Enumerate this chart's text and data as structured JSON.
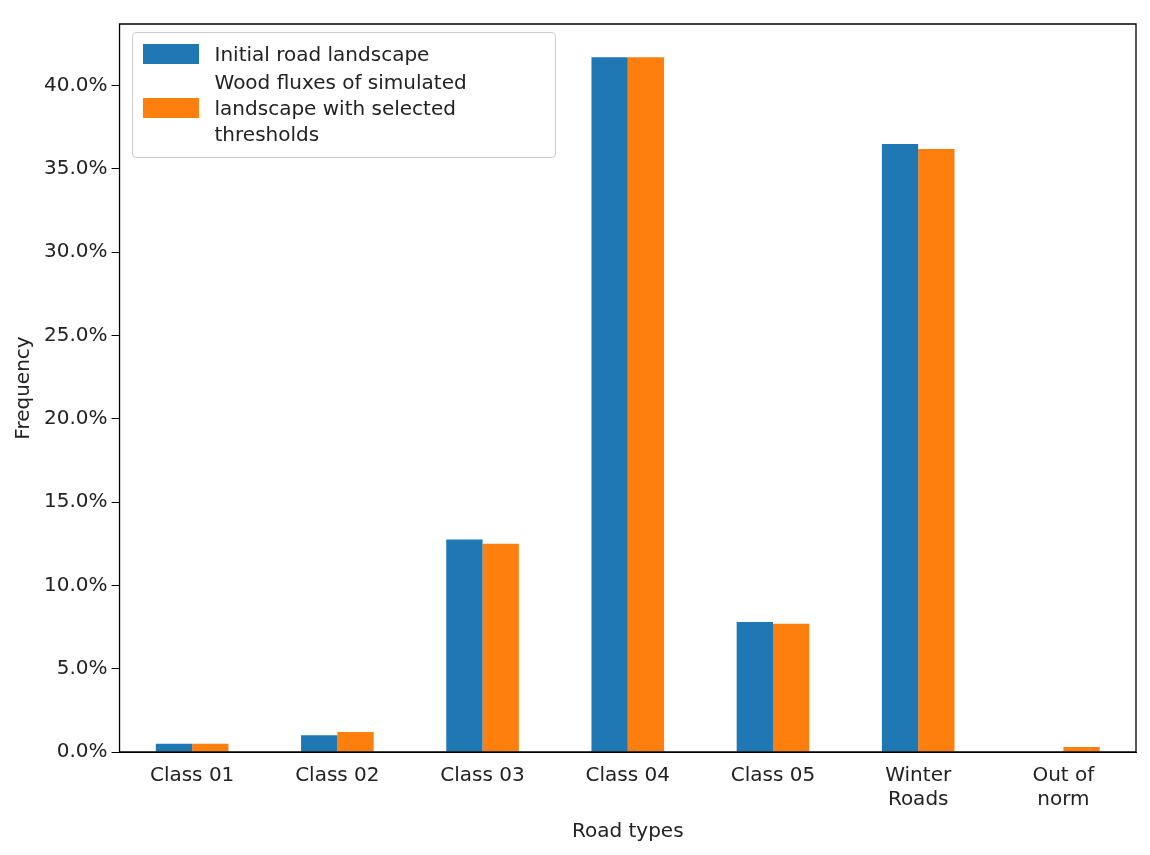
{
  "chart_data": {
    "type": "bar",
    "categories": [
      "Class 01",
      "Class 02",
      "Class 03",
      "Class 04",
      "Class 05",
      "Winter Roads",
      "Out of norm"
    ],
    "series": [
      {
        "name": "Initial road landscape",
        "color": "#1f77b4",
        "values": [
          0.5,
          1.0,
          12.75,
          41.7,
          7.8,
          36.5,
          0
        ]
      },
      {
        "name": "Wood fluxes of simulated landscape with selected thresholds",
        "color": "#ff7f0e",
        "values": [
          0.5,
          1.2,
          12.5,
          41.7,
          7.7,
          36.2,
          0.3
        ]
      }
    ],
    "xlabel": "Road types",
    "ylabel": "Frequency",
    "ylim": [
      0,
      43.7
    ],
    "yticks": [
      {
        "value": 0,
        "label": "0.0%"
      },
      {
        "value": 5,
        "label": "5.0%"
      },
      {
        "value": 10,
        "label": "10.0%"
      },
      {
        "value": 15,
        "label": "15.0%"
      },
      {
        "value": 20,
        "label": "20.0%"
      },
      {
        "value": 25,
        "label": "25.0%"
      },
      {
        "value": 30,
        "label": "30.0%"
      },
      {
        "value": 35,
        "label": "35.0%"
      },
      {
        "value": 40,
        "label": "40.0%"
      }
    ],
    "legend": "top left",
    "grid": false
  }
}
